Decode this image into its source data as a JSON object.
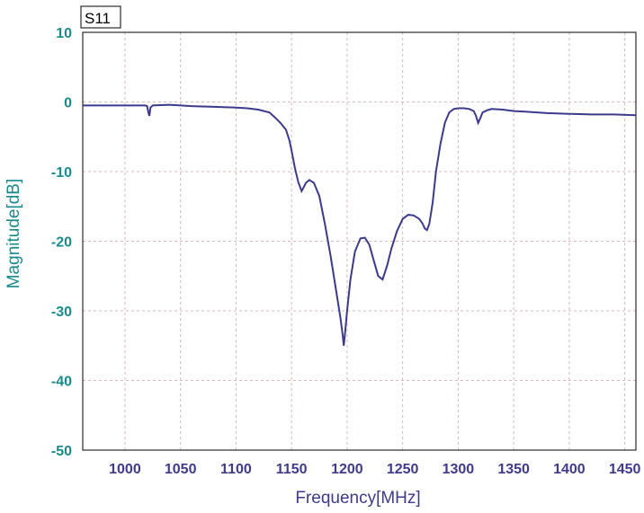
{
  "chart_data": {
    "type": "line",
    "title": "S11",
    "xlabel": "Frequency[MHz]",
    "ylabel": "Magnitude[dB]",
    "xlim": [
      962,
      1460
    ],
    "ylim": [
      -50,
      10
    ],
    "xticks": [
      1000,
      1050,
      1100,
      1150,
      1200,
      1250,
      1300,
      1350,
      1400,
      1450
    ],
    "yticks": [
      10,
      0,
      -10,
      -20,
      -30,
      -40,
      -50
    ],
    "grid": true,
    "colors": {
      "line": "#3b3a8c",
      "ytick": "#1a8a8a",
      "xtick": "#3f3a8c",
      "grid": "#d8b8b8"
    },
    "series": [
      {
        "x": [
          962,
          1000,
          1018,
          1020,
          1021,
          1022,
          1023,
          1025,
          1040,
          1060,
          1080,
          1100,
          1110,
          1120,
          1130,
          1135,
          1140,
          1145,
          1148,
          1150,
          1153,
          1156,
          1159,
          1161,
          1163,
          1166,
          1170,
          1175,
          1180,
          1185,
          1190,
          1194,
          1196,
          1197,
          1198,
          1200,
          1203,
          1207,
          1212,
          1216,
          1220,
          1224,
          1228,
          1232,
          1236,
          1240,
          1245,
          1250,
          1255,
          1260,
          1265,
          1268,
          1270,
          1272,
          1274,
          1277,
          1280,
          1284,
          1288,
          1292,
          1296,
          1300,
          1305,
          1310,
          1314,
          1316,
          1318,
          1320,
          1322,
          1326,
          1330,
          1340,
          1350,
          1360,
          1380,
          1400,
          1420,
          1440,
          1460
        ],
        "y": [
          -0.5,
          -0.5,
          -0.5,
          -0.6,
          -1.5,
          -2.0,
          -0.8,
          -0.5,
          -0.4,
          -0.6,
          -0.7,
          -0.8,
          -0.9,
          -1.1,
          -1.5,
          -2.2,
          -3.0,
          -4.0,
          -5.5,
          -7.0,
          -9.5,
          -11.5,
          -12.8,
          -12.2,
          -11.6,
          -11.2,
          -11.6,
          -13.5,
          -17.5,
          -22.0,
          -27.0,
          -31.0,
          -33.5,
          -35.0,
          -33.5,
          -30.0,
          -25.5,
          -21.5,
          -19.6,
          -19.5,
          -20.5,
          -22.8,
          -25.0,
          -25.5,
          -23.5,
          -21.0,
          -18.5,
          -16.8,
          -16.2,
          -16.3,
          -16.8,
          -17.5,
          -18.2,
          -18.4,
          -17.5,
          -14.5,
          -10.0,
          -6.0,
          -3.0,
          -1.5,
          -1.0,
          -0.9,
          -0.9,
          -1.0,
          -1.3,
          -2.0,
          -3.0,
          -2.3,
          -1.5,
          -1.2,
          -1.0,
          -1.1,
          -1.3,
          -1.4,
          -1.6,
          -1.7,
          -1.8,
          -1.8,
          -1.9
        ]
      }
    ]
  }
}
